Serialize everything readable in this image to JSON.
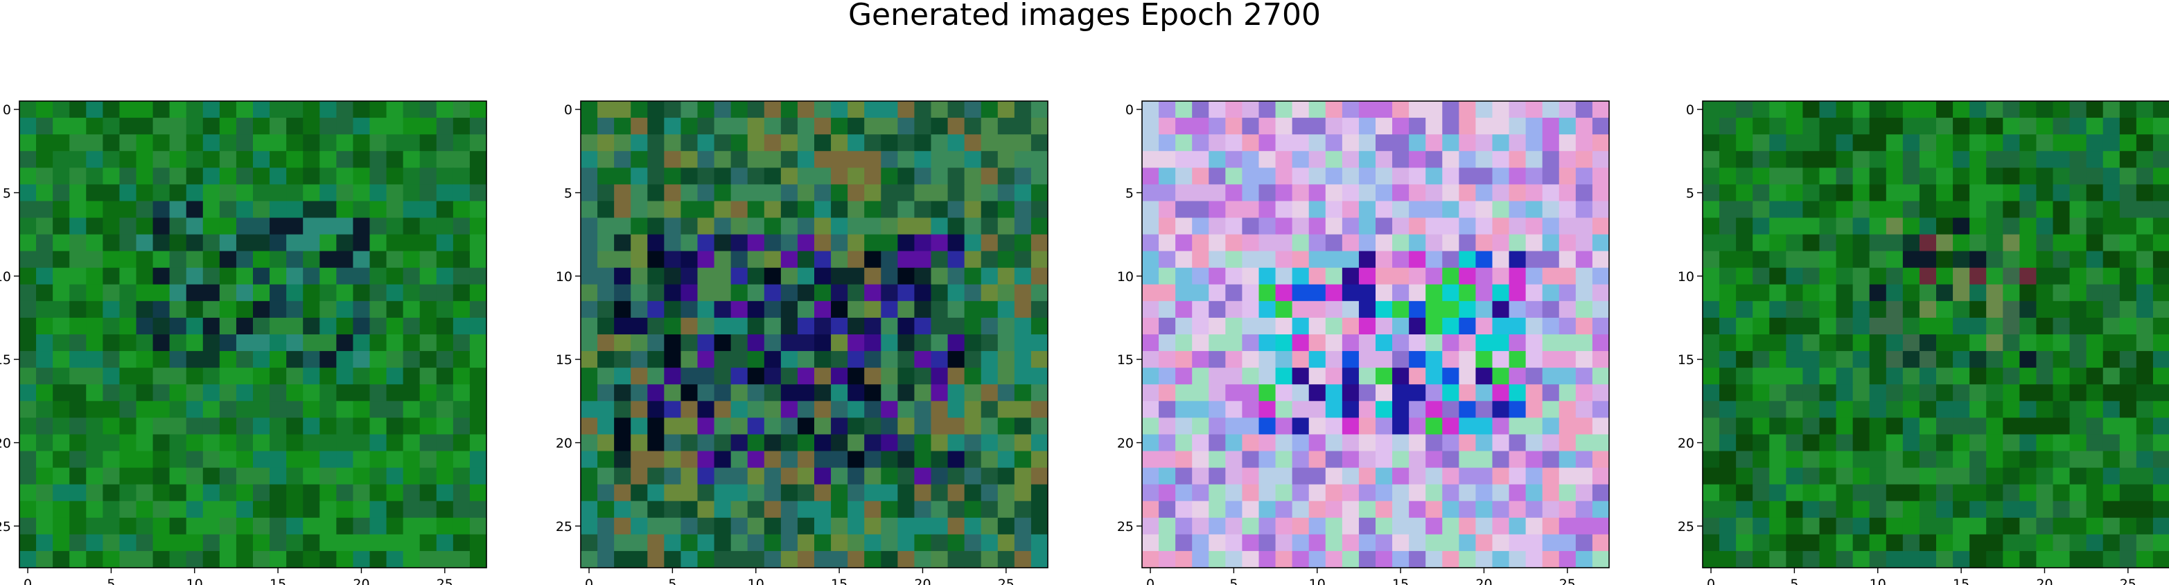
{
  "figure": {
    "title": "Generated images Epoch 2700"
  },
  "chart_data": [
    {
      "type": "heatmap",
      "title": "",
      "grid_size": 28,
      "x_ticks": [
        0,
        5,
        10,
        15,
        20,
        25
      ],
      "y_ticks": [
        0,
        5,
        10,
        15,
        20,
        25
      ],
      "xlim": [
        -0.5,
        27.5
      ],
      "ylim": [
        27.5,
        -0.5
      ],
      "grid": false,
      "palette": {
        "base": "#1d8a1d",
        "variants": [
          "#0c6e12",
          "#128f18",
          "#0a5a14",
          "#1c9a2a",
          "#2a8a3a",
          "#157a2a",
          "#0f8060",
          "#1d6a3d"
        ]
      },
      "dark_patch": {
        "rows": [
          6,
          15
        ],
        "cols": [
          7,
          20
        ],
        "colors": [
          "#0a1a2a",
          "#113c4a",
          "#1a5a5a",
          "#0a3a2a",
          "#2a8a7a"
        ]
      }
    },
    {
      "type": "heatmap",
      "title": "",
      "grid_size": 28,
      "x_ticks": [
        0,
        5,
        10,
        15,
        20,
        25
      ],
      "y_ticks": [
        0,
        5,
        10,
        15,
        20,
        25
      ],
      "xlim": [
        -0.5,
        27.5
      ],
      "ylim": [
        27.5,
        -0.5
      ],
      "grid": false,
      "palette": {
        "base": "#2a7a3a",
        "variants": [
          "#0c6e22",
          "#3a8a5a",
          "#1a5a3a",
          "#4a8a4a",
          "#2a6a6a",
          "#0a4a2a",
          "#6a8a3a",
          "#1a8a7a",
          "#7a6a3a"
        ]
      },
      "dark_patch": {
        "rows": [
          8,
          22
        ],
        "cols": [
          2,
          22
        ],
        "colors": [
          "#0a0a4a",
          "#14125e",
          "#2a2aa0",
          "#5a10a0",
          "#1a4a5a",
          "#000a1a",
          "#3a0a8a",
          "#0a2a2a"
        ]
      }
    },
    {
      "type": "heatmap",
      "title": "",
      "grid_size": 28,
      "x_ticks": [
        0,
        5,
        10,
        15,
        20,
        25
      ],
      "y_ticks": [
        0,
        5,
        10,
        15,
        20,
        25
      ],
      "xlim": [
        -0.5,
        27.5
      ],
      "ylim": [
        27.5,
        -0.5
      ],
      "grid": false,
      "palette": {
        "base": "#c8a8e0",
        "variants": [
          "#d8b0e8",
          "#a890e8",
          "#e8a0d8",
          "#b8d0e8",
          "#9ab0f0",
          "#e0c0f0",
          "#c070e0",
          "#70c0e0",
          "#e8d0e8",
          "#a0e0c0",
          "#8a70d0",
          "#f0a0c0"
        ]
      },
      "dark_patch": {
        "rows": [
          9,
          19
        ],
        "cols": [
          7,
          22
        ],
        "colors": [
          "#1a1aa0",
          "#2a0a8a",
          "#0ad0d0",
          "#20c0e0",
          "#d030d0",
          "#1050e0",
          "#30d040"
        ]
      }
    },
    {
      "type": "heatmap",
      "title": "",
      "grid_size": 28,
      "x_ticks": [
        0,
        5,
        10,
        15,
        20,
        25
      ],
      "y_ticks": [
        0,
        5,
        10,
        15,
        20,
        25
      ],
      "xlim": [
        -0.5,
        27.5
      ],
      "ylim": [
        27.5,
        -0.5
      ],
      "grid": false,
      "palette": {
        "base": "#1a7a1a",
        "variants": [
          "#0c6e12",
          "#128f18",
          "#0a5a14",
          "#1c9a2a",
          "#2a8a3a",
          "#157a2a",
          "#0f7050",
          "#1d6a3d",
          "#0a4a0a"
        ]
      },
      "dark_patch": {
        "rows": [
          7,
          15
        ],
        "cols": [
          10,
          19
        ],
        "colors": [
          "#0a1a2a",
          "#6a2a3a",
          "#3a6a4a",
          "#6a8a4a",
          "#0a3a2a"
        ]
      }
    }
  ]
}
